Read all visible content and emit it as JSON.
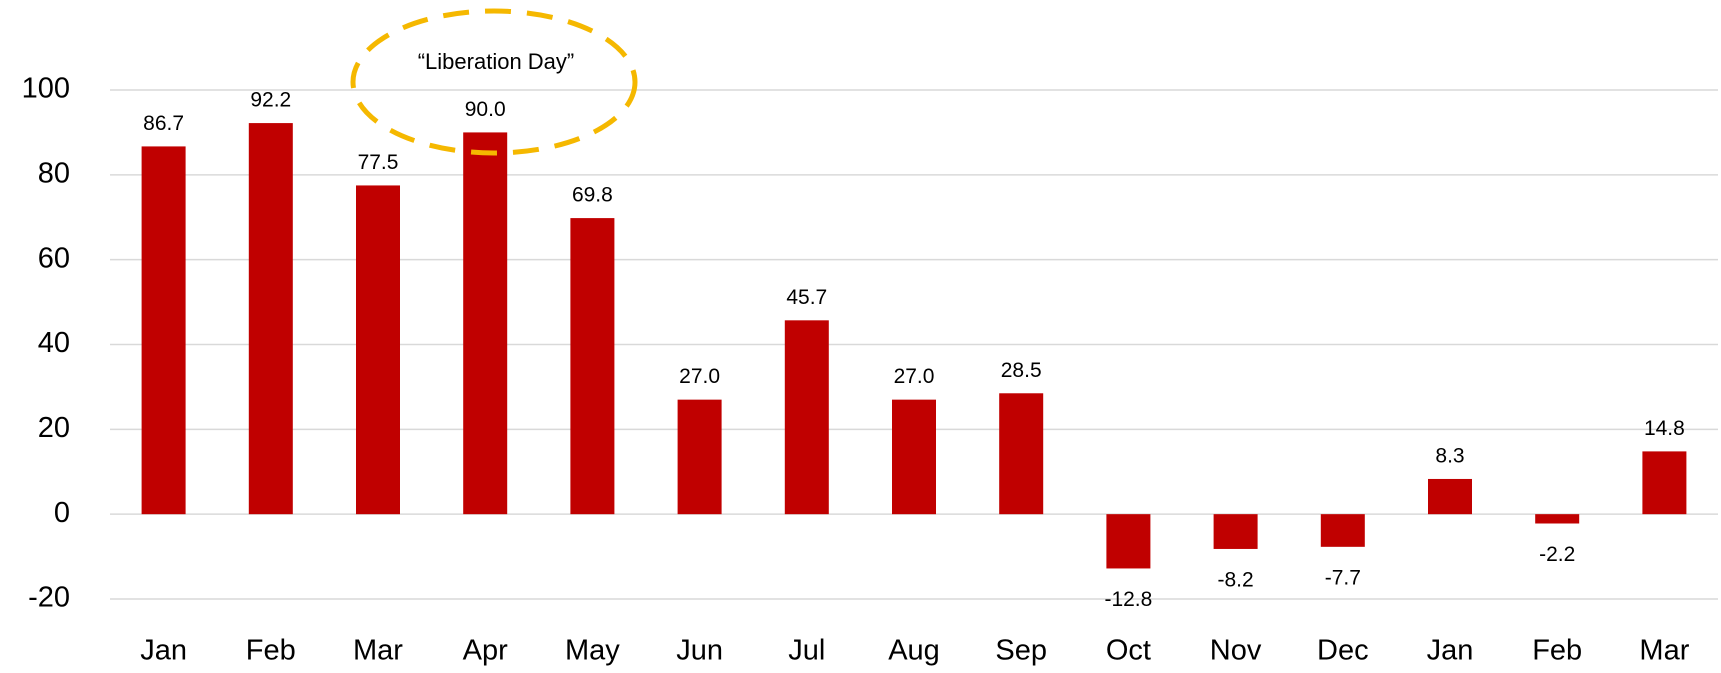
{
  "chart_data": {
    "type": "bar",
    "annotation": "“Liberation Day”",
    "categories": [
      "Jan",
      "Feb",
      "Mar",
      "Apr",
      "May",
      "Jun",
      "Jul",
      "Aug",
      "Sep",
      "Oct",
      "Nov",
      "Dec",
      "Jan",
      "Feb",
      "Mar"
    ],
    "values": [
      86.7,
      92.2,
      77.5,
      90,
      69.8,
      27,
      45.7,
      27,
      28.5,
      -12.8,
      -8.2,
      -7.7,
      8.3,
      -2.2,
      14.8
    ],
    "value_labels": [
      "86.7",
      "92.2",
      "77.5",
      "90.0",
      "69.8",
      "27.0",
      "45.7",
      "27.0",
      "28.5",
      "-12.8",
      "-8.2",
      "-7.7",
      "8.3",
      "-2.2",
      "14.8"
    ],
    "color": "#c00000",
    "ylim": [
      -20,
      100
    ],
    "yticks": [
      -20,
      0,
      20,
      40,
      60,
      80,
      100
    ],
    "grid": true
  }
}
